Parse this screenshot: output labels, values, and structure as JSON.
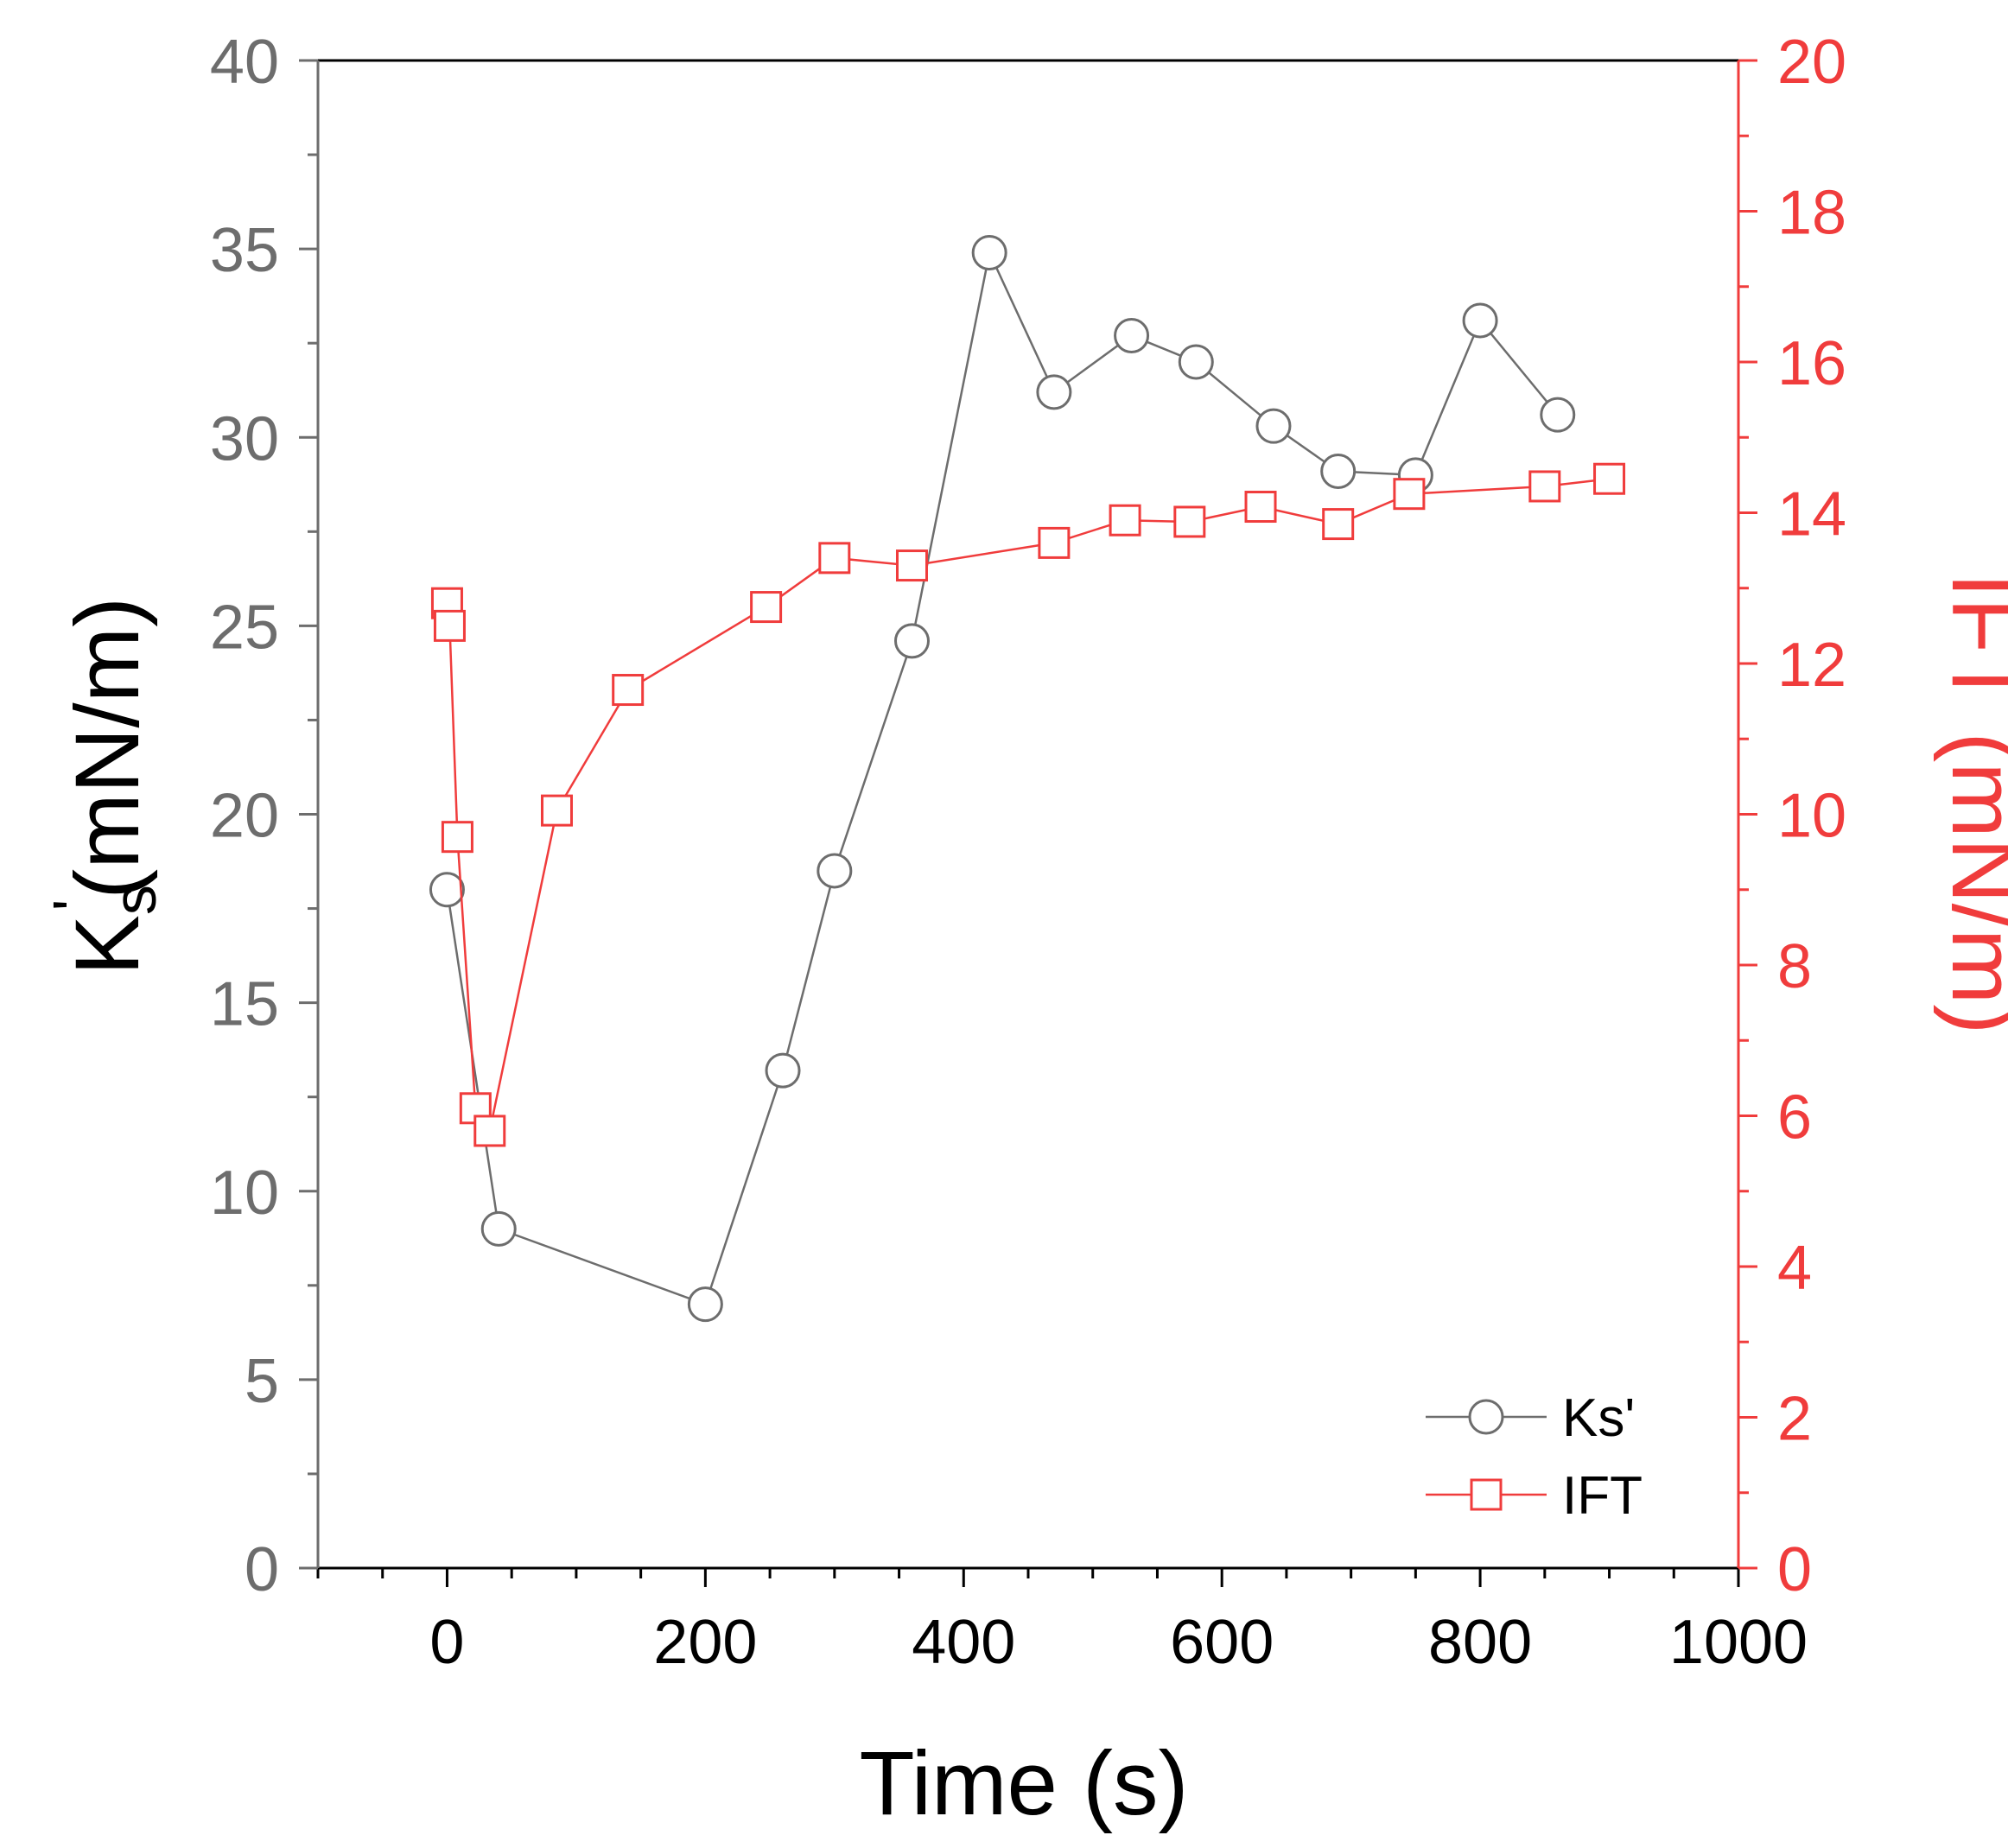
{
  "chart_data": {
    "type": "line",
    "title": "",
    "xlabel": "Time (s)",
    "ylabel": {
      "main": "K",
      "sup": "'",
      "sub": "s",
      "unit": "(mN/m)"
    },
    "y2label": "IFT (mN/m)",
    "xlim": [
      -100,
      1000
    ],
    "ylim": [
      0,
      40
    ],
    "y2lim": [
      0,
      20
    ],
    "xticks": [
      0,
      200,
      400,
      600,
      800,
      1000
    ],
    "xtick_labels": [
      "0",
      "200",
      "400",
      "600",
      "800",
      "1000"
    ],
    "yticks": [
      0,
      5,
      10,
      15,
      20,
      25,
      30,
      35,
      40
    ],
    "ytick_labels": [
      "0",
      "5",
      "10",
      "15",
      "20",
      "25",
      "30",
      "35",
      "40"
    ],
    "y2ticks": [
      0,
      2,
      4,
      6,
      8,
      10,
      12,
      14,
      16,
      18,
      20
    ],
    "y2tick_labels": [
      "0",
      "2",
      "4",
      "6",
      "8",
      "10",
      "12",
      "14",
      "16",
      "18",
      "20"
    ],
    "grid": false,
    "legend_position": "bottom-right",
    "series": [
      {
        "name": "Ks'",
        "axis": "left",
        "marker": "circle",
        "color": "#6d6d6d",
        "x": [
          0,
          40,
          200,
          260,
          300,
          360,
          420,
          470,
          530,
          580,
          640,
          690,
          750,
          800,
          860
        ],
        "y": [
          18.0,
          9.0,
          7.0,
          13.2,
          18.5,
          24.6,
          34.9,
          31.2,
          32.7,
          32.0,
          30.3,
          29.1,
          29.0,
          33.1,
          30.6
        ]
      },
      {
        "name": "IFT",
        "axis": "right",
        "marker": "square",
        "color": "#f03c3c",
        "x": [
          0,
          2,
          8,
          22,
          33,
          85,
          140,
          247,
          300,
          360,
          470,
          525,
          575,
          630,
          690,
          745,
          850,
          900
        ],
        "y": [
          12.8,
          12.5,
          9.7,
          6.1,
          5.8,
          10.05,
          11.65,
          12.75,
          13.4,
          13.3,
          13.6,
          13.9,
          13.88,
          14.08,
          13.85,
          14.25,
          14.35,
          14.45
        ]
      }
    ]
  },
  "colors": {
    "left_axis": "#6d6d6d",
    "right_axis": "#f03c3c",
    "text": "#000000"
  }
}
